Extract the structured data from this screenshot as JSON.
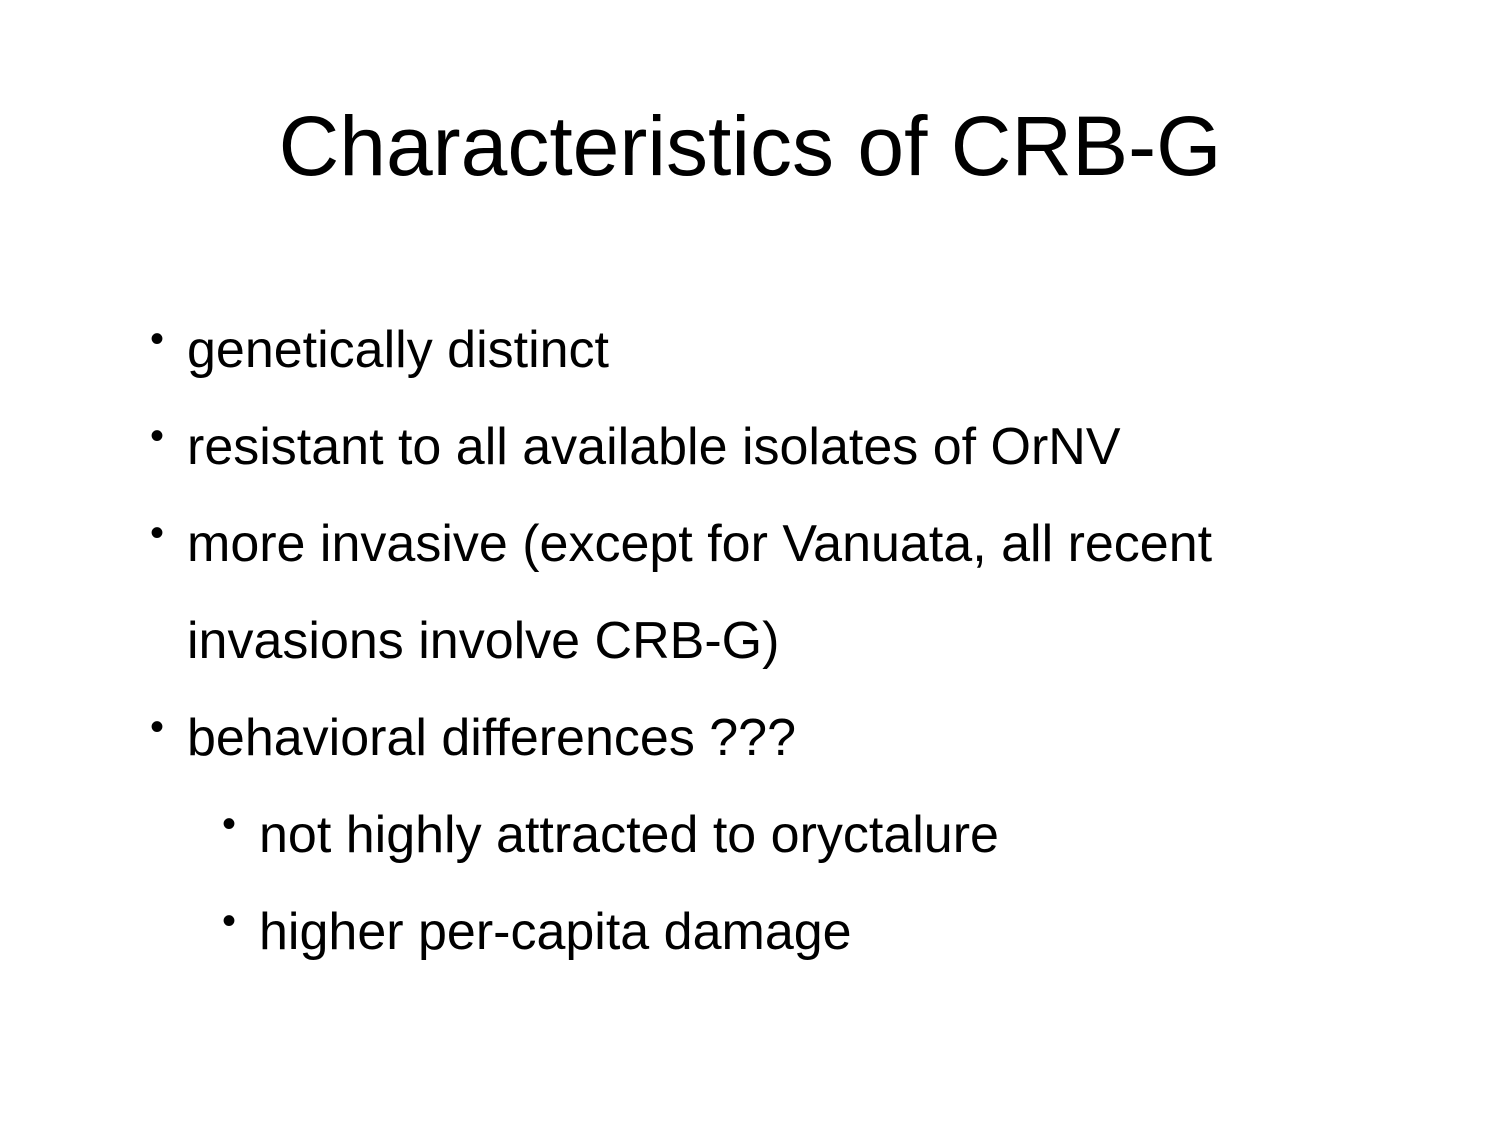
{
  "slide": {
    "title": "Characteristics of CRB-G",
    "bullets": [
      {
        "level": 1,
        "text": "genetically distinct"
      },
      {
        "level": 1,
        "text": "resistant to all available isolates of OrNV"
      },
      {
        "level": 1,
        "text": "more invasive (except for Vanuata, all recent invasions involve CRB-G)"
      },
      {
        "level": 1,
        "text": "behavioral differences ???"
      },
      {
        "level": 2,
        "text": "not highly attracted to oryctalure"
      },
      {
        "level": 2,
        "text": "higher per-capita damage"
      }
    ],
    "bullet_glyph": "•"
  }
}
